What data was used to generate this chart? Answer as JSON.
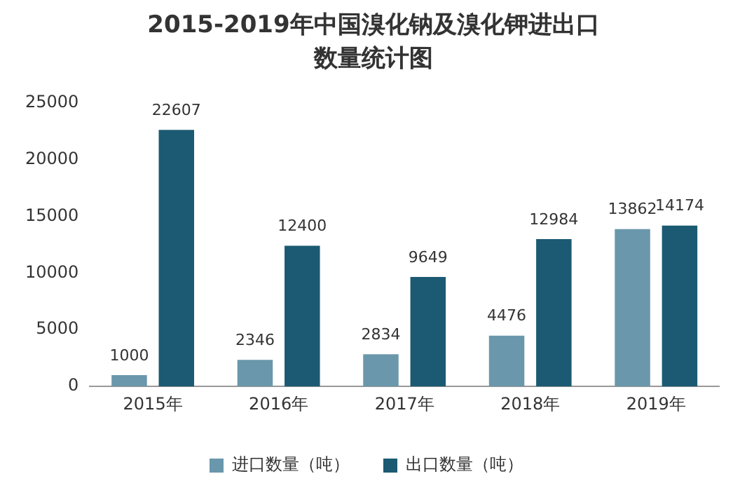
{
  "chart_data": {
    "type": "bar",
    "title": "2015-2019年中国溴化钠及溴化钾进出口数量统计图",
    "categories": [
      "2015年",
      "2016年",
      "2017年",
      "2018年",
      "2019年"
    ],
    "series": [
      {
        "name": "进口数量（吨）",
        "color": "#6a97ab",
        "values": [
          1000,
          2346,
          2834,
          4476,
          13862
        ]
      },
      {
        "name": "出口数量（吨）",
        "color": "#1b5a72",
        "values": [
          22607,
          12400,
          9649,
          12984,
          14174
        ]
      }
    ],
    "ylim": [
      0,
      25000
    ],
    "yticks": [
      0,
      5000,
      10000,
      15000,
      20000,
      25000
    ],
    "grid": false,
    "legend": "bottom",
    "data_labels": true
  }
}
